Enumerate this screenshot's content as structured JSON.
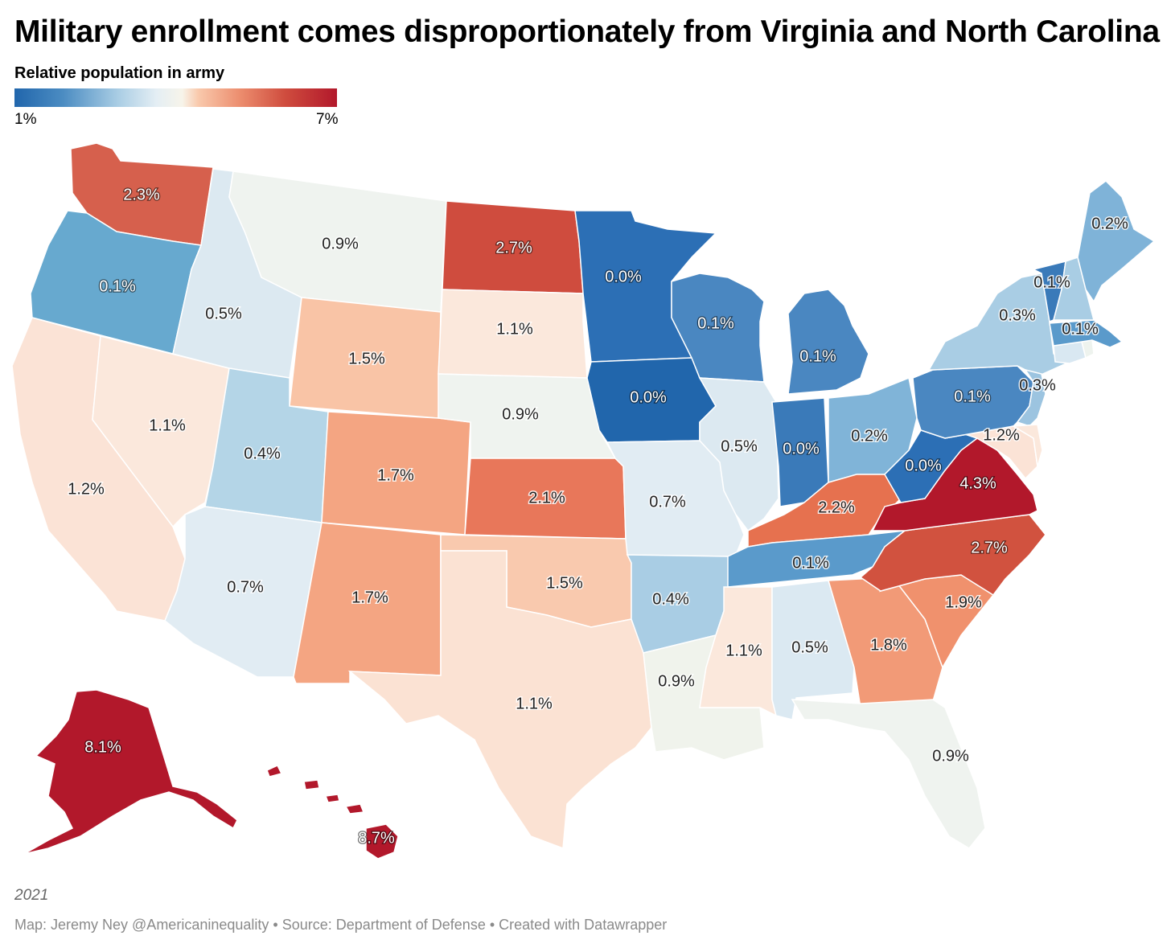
{
  "title": "Military enrollment comes disproportionately from Virginia and North Carolina",
  "legend": {
    "title": "Relative population in army",
    "min_label": "1%",
    "max_label": "7%",
    "colors": [
      "#2166ac",
      "#4b8cc2",
      "#a9cde4",
      "#e4eef4",
      "#f7f4ea",
      "#f9c9ac",
      "#ec8d6e",
      "#cf4c3e",
      "#b2182b"
    ]
  },
  "year": "2021",
  "credits": "Map: Jeremy Ney @Americaninequality • Source: Department of Defense • Created with Datawrapper",
  "states": [
    {
      "code": "WA",
      "value": "2.3%",
      "color": "#d6604d",
      "light": true
    },
    {
      "code": "OR",
      "value": "0.1%",
      "color": "#67a9cf",
      "light": true
    },
    {
      "code": "CA",
      "value": "1.2%",
      "color": "#fbe3d6",
      "light": false
    },
    {
      "code": "NV",
      "value": "1.1%",
      "color": "#fbe8dc",
      "light": false
    },
    {
      "code": "ID",
      "value": "0.5%",
      "color": "#dce9f1",
      "light": false
    },
    {
      "code": "MT",
      "value": "0.9%",
      "color": "#eff3ef",
      "light": false
    },
    {
      "code": "WY",
      "value": "1.5%",
      "color": "#f9c4a6",
      "light": false
    },
    {
      "code": "UT",
      "value": "0.4%",
      "color": "#b4d5e7",
      "light": false
    },
    {
      "code": "AZ",
      "value": "0.7%",
      "color": "#e1ecf3",
      "light": false
    },
    {
      "code": "CO",
      "value": "1.7%",
      "color": "#f4a582",
      "light": false
    },
    {
      "code": "NM",
      "value": "1.7%",
      "color": "#f4a582",
      "light": false
    },
    {
      "code": "ND",
      "value": "2.7%",
      "color": "#cf4c3e",
      "light": true
    },
    {
      "code": "SD",
      "value": "1.1%",
      "color": "#fbe8dc",
      "light": false
    },
    {
      "code": "NE",
      "value": "0.9%",
      "color": "#eff3ef",
      "light": false
    },
    {
      "code": "KS",
      "value": "2.1%",
      "color": "#e8775a",
      "light": false
    },
    {
      "code": "OK",
      "value": "1.5%",
      "color": "#f9c9ae",
      "light": false
    },
    {
      "code": "TX",
      "value": "1.1%",
      "color": "#fbe2d3",
      "light": false
    },
    {
      "code": "MN",
      "value": "0.0%",
      "color": "#2c6fb5",
      "light": true
    },
    {
      "code": "IA",
      "value": "0.0%",
      "color": "#2166ac",
      "light": true
    },
    {
      "code": "MO",
      "value": "0.7%",
      "color": "#e1ecf3",
      "light": false
    },
    {
      "code": "AR",
      "value": "0.4%",
      "color": "#a9cde4",
      "light": false
    },
    {
      "code": "LA",
      "value": "0.9%",
      "color": "#f0f3ec",
      "light": false
    },
    {
      "code": "WI",
      "value": "0.1%",
      "color": "#4a87c1",
      "light": true
    },
    {
      "code": "IL",
      "value": "0.5%",
      "color": "#dce9f1",
      "light": false
    },
    {
      "code": "MI",
      "value": "0.1%",
      "color": "#4a87c1",
      "light": true
    },
    {
      "code": "IN",
      "value": "0.0%",
      "color": "#3a7ab9",
      "light": true
    },
    {
      "code": "OH",
      "value": "0.2%",
      "color": "#80b4d8",
      "light": false
    },
    {
      "code": "KY",
      "value": "2.2%",
      "color": "#e6714f",
      "light": false
    },
    {
      "code": "TN",
      "value": "0.1%",
      "color": "#5a9acb",
      "light": false
    },
    {
      "code": "MS",
      "value": "1.1%",
      "color": "#fbe8dc",
      "light": false
    },
    {
      "code": "AL",
      "value": "0.5%",
      "color": "#dbe9f2",
      "light": false
    },
    {
      "code": "GA",
      "value": "1.8%",
      "color": "#f29a77",
      "light": false
    },
    {
      "code": "FL",
      "value": "0.9%",
      "color": "#eff3ef",
      "light": false
    },
    {
      "code": "SC",
      "value": "1.9%",
      "color": "#f0916d",
      "light": false
    },
    {
      "code": "NC",
      "value": "2.7%",
      "color": "#d1523f",
      "light": true
    },
    {
      "code": "VA",
      "value": "4.3%",
      "color": "#b2182b",
      "light": true
    },
    {
      "code": "WV",
      "value": "0.0%",
      "color": "#2c6fb5",
      "light": true
    },
    {
      "code": "MD",
      "value": "1.2%",
      "color": "#fbe3d6",
      "light": false
    },
    {
      "code": "PA",
      "value": "0.1%",
      "color": "#4a87c1",
      "light": true
    },
    {
      "code": "NY",
      "value": "0.3%",
      "color": "#a9cde4",
      "light": false
    },
    {
      "code": "NJ",
      "value": "0.3%",
      "color": "#9cc4e0",
      "light": false
    },
    {
      "code": "DE",
      "value": "",
      "color": "#fbe8dc",
      "light": false
    },
    {
      "code": "CT",
      "value": "",
      "color": "#d9e8f2",
      "light": false
    },
    {
      "code": "RI",
      "value": "",
      "color": "#eef3ee",
      "light": false
    },
    {
      "code": "MA",
      "value": "0.1%",
      "color": "#5a9acb",
      "light": false
    },
    {
      "code": "VT",
      "value": "0.1%",
      "color": "#3a7ab9",
      "light": false
    },
    {
      "code": "NH",
      "value": "",
      "color": "#a9cde4",
      "light": false
    },
    {
      "code": "ME",
      "value": "0.2%",
      "color": "#7fb3d8",
      "light": false
    },
    {
      "code": "AK",
      "value": "8.1%",
      "color": "#b2182b",
      "light": true
    },
    {
      "code": "HI",
      "value": "8.7%",
      "color": "#b2182b",
      "light": true
    }
  ]
}
